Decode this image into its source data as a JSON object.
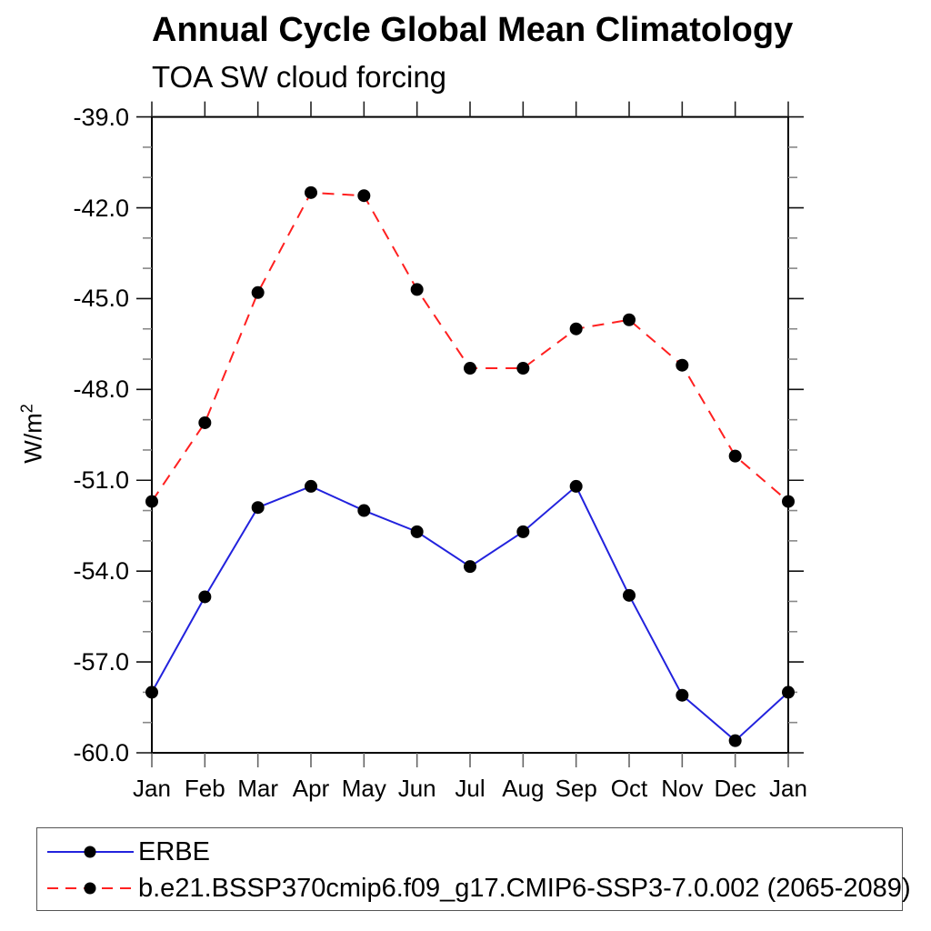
{
  "page": {
    "background_color": "#ffffff",
    "text_color": "#000000"
  },
  "chart_data": {
    "type": "line",
    "title": "Annual Cycle Global Mean Climatology",
    "subtitle": "TOA SW cloud forcing",
    "ylabel_base": "W/m",
    "ylabel_exponent": "2",
    "categories": [
      "Jan",
      "Feb",
      "Mar",
      "Apr",
      "May",
      "Jun",
      "Jul",
      "Aug",
      "Sep",
      "Oct",
      "Nov",
      "Dec",
      "Jan"
    ],
    "ylim": [
      -60.0,
      -39.0
    ],
    "ytick_values": [
      -39,
      -42,
      -45,
      -48,
      -51,
      -54,
      -57,
      -60
    ],
    "ytick_labels": [
      "-39.0",
      "-42.0",
      "-45.0",
      "-48.0",
      "-51.0",
      "-54.0",
      "-57.0",
      "-60.0"
    ],
    "y_minor_tick_step": 1.0,
    "grid": false,
    "legend_position": "bottom-left-box",
    "marker": "filled-circle",
    "marker_color": "#000000",
    "axis_color": "#000000",
    "series": [
      {
        "name": "ERBE",
        "color": "#2222dd",
        "line_style": "solid",
        "values": [
          -58.0,
          -54.85,
          -51.9,
          -51.2,
          -52.0,
          -52.7,
          -53.85,
          -52.7,
          -51.2,
          -54.8,
          -58.1,
          -59.6,
          -58.0
        ]
      },
      {
        "name": "b.e21.BSSP370cmip6.f09_g17.CMIP6-SSP3-7.0.002 (2065-2089)",
        "color": "#ff2020",
        "line_style": "dashed",
        "values": [
          -51.7,
          -49.1,
          -44.8,
          -41.5,
          -41.6,
          -44.7,
          -47.3,
          -47.3,
          -46.0,
          -45.7,
          -47.2,
          -50.2,
          -51.7
        ]
      }
    ]
  }
}
